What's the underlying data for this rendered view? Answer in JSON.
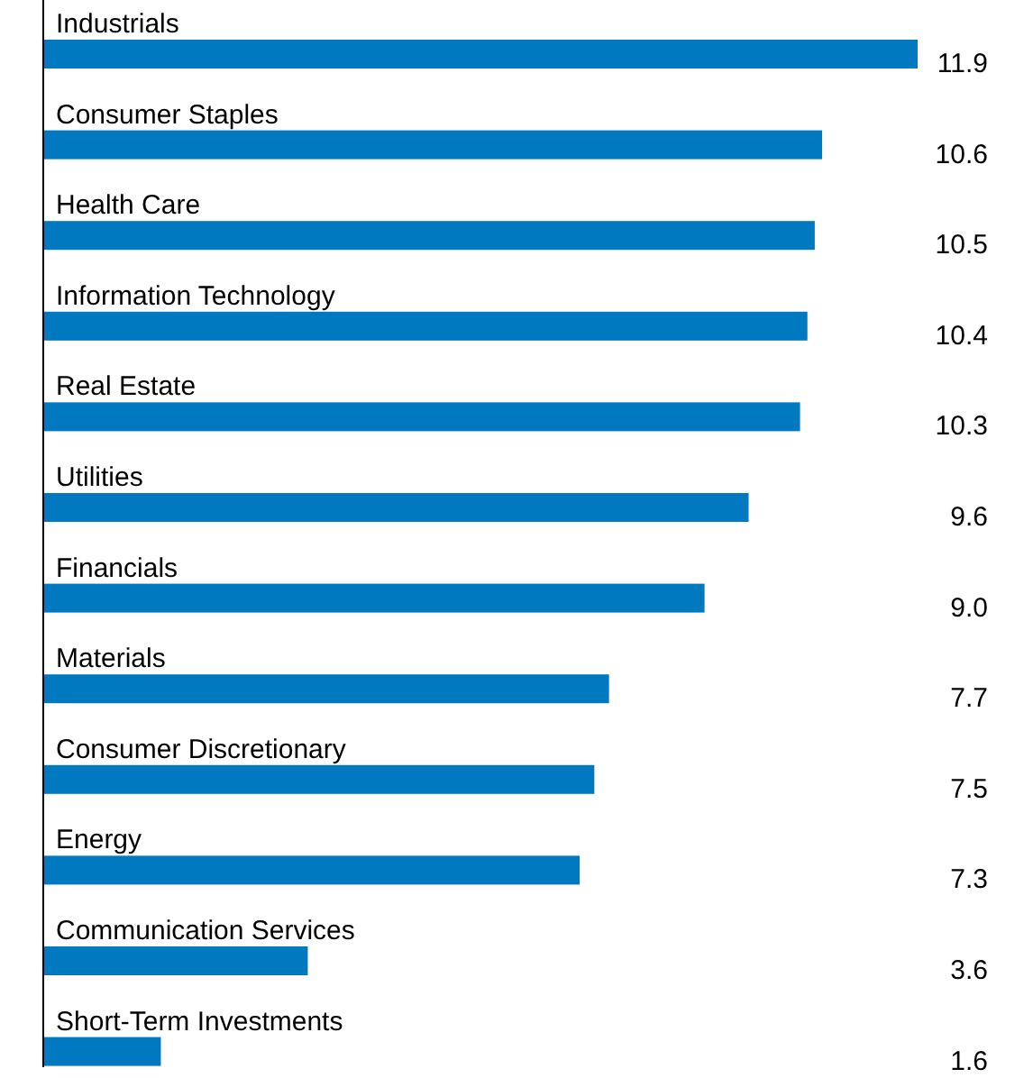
{
  "chart_data": {
    "type": "bar",
    "orientation": "horizontal",
    "categories": [
      "Industrials",
      "Consumer Staples",
      "Health Care",
      "Information Technology",
      "Real Estate",
      "Utilities",
      "Financials",
      "Materials",
      "Consumer Discretionary",
      "Energy",
      "Communication Services",
      "Short-Term Investments"
    ],
    "values": [
      11.9,
      10.6,
      10.5,
      10.4,
      10.3,
      9.6,
      9.0,
      7.7,
      7.5,
      7.3,
      3.6,
      1.6
    ],
    "value_labels": [
      "11.9",
      "10.6",
      "10.5",
      "10.4",
      "10.3",
      "9.6",
      "9.0",
      "7.7",
      "7.5",
      "7.3",
      "3.6",
      "1.6"
    ],
    "color": "#0079c1"
  }
}
